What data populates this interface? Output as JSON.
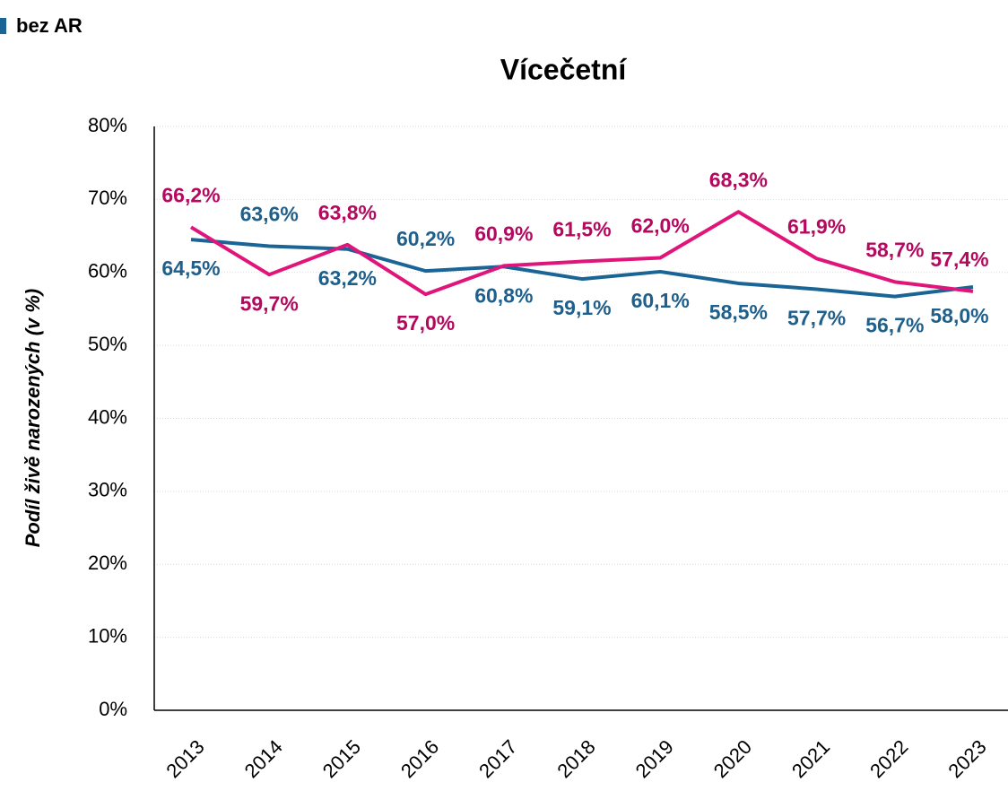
{
  "chart_data": {
    "type": "line",
    "title": "Vícečetní",
    "y_label": "Podíl živě narozených (v %)",
    "categories": [
      "2013",
      "2014",
      "2015",
      "2016",
      "2017",
      "2018",
      "2019",
      "2020",
      "2021",
      "2022",
      "2023"
    ],
    "series": [
      {
        "name": "bez AR",
        "color": "#1a6496",
        "values": [
          64.5,
          63.6,
          63.2,
          60.2,
          60.8,
          59.1,
          60.1,
          58.5,
          57.7,
          56.7,
          58.0
        ],
        "value_labels": [
          "64,5%",
          "63,6%",
          "63,2%",
          "60,2%",
          "60,8%",
          "59,1%",
          "60,1%",
          "58,5%",
          "57,7%",
          "56,7%",
          "58,0%"
        ]
      },
      {
        "color": "#e0157a",
        "values": [
          66.2,
          59.7,
          63.8,
          57.0,
          60.9,
          61.5,
          62.0,
          68.3,
          61.9,
          58.7,
          57.4
        ],
        "value_labels": [
          "66,2%",
          "59,7%",
          "63,8%",
          "57,0%",
          "60,9%",
          "61,5%",
          "62,0%",
          "68,3%",
          "61,9%",
          "58,7%",
          "57,4%"
        ]
      }
    ],
    "ylim": [
      0,
      80
    ],
    "yticks": [
      {
        "value": 0,
        "label": "0%"
      },
      {
        "value": 10,
        "label": "10%"
      },
      {
        "value": 20,
        "label": "20%"
      },
      {
        "value": 30,
        "label": "30%"
      },
      {
        "value": 40,
        "label": "40%"
      },
      {
        "value": 50,
        "label": "50%"
      },
      {
        "value": 60,
        "label": "60%"
      },
      {
        "value": 70,
        "label": "70%"
      },
      {
        "value": 80,
        "label": "80%"
      }
    ],
    "grid": true,
    "legend": "top-left"
  }
}
